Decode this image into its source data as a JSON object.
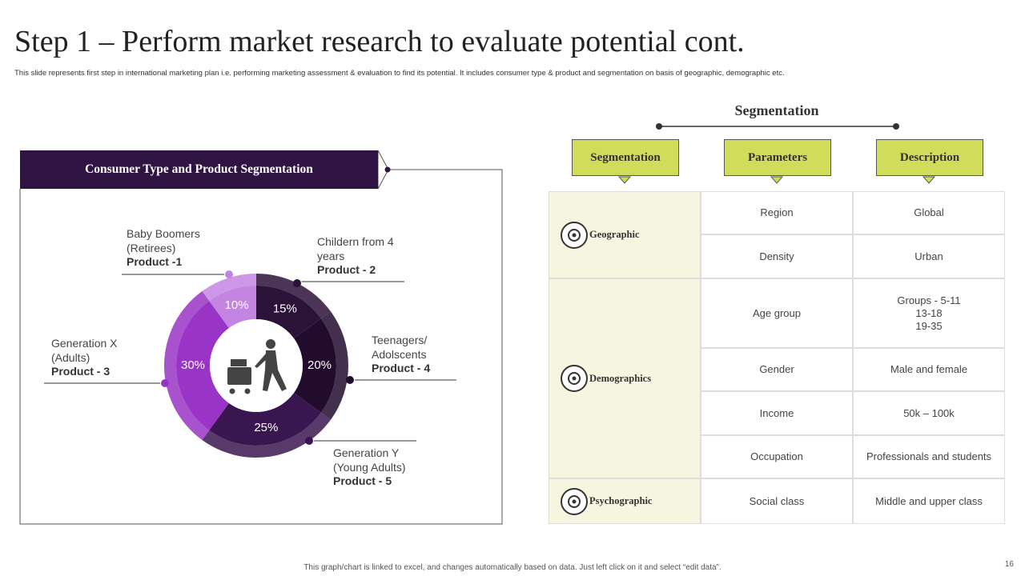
{
  "title": "Step 1 – Perform market research to evaluate potential cont.",
  "subtitle": "This slide represents first step in international marketing plan i.e. performing marketing assessment & evaluation to find its potential. It includes consumer type & product and segmentation on basis of geographic, demographic etc.",
  "chart_data": {
    "type": "donut",
    "title": "Consumer Type and Product Segmentation",
    "categories": [
      "Childern from 4\nyears",
      "Teenagers/\nAdolscents",
      "Generation Y\n(Young Adults)",
      "Generation X\n(Adults)",
      "Baby Boomers\n(Retirees)"
    ],
    "products": [
      "Product - 2",
      "Product - 4",
      "Product - 5",
      "Product - 3",
      "Product -1"
    ],
    "values": [
      15,
      20,
      25,
      30,
      10
    ],
    "value_labels": [
      "15%",
      "20%",
      "25%",
      "30%",
      "10%"
    ],
    "colors": [
      "#2a1238",
      "#220c2e",
      "#3a1650",
      "#9934c6",
      "#c484e2"
    ]
  },
  "segmentation": {
    "heading": "Segmentation",
    "columns": [
      "Segmentation",
      "Parameters",
      "Description"
    ],
    "groups": [
      {
        "label": "Geographic",
        "rows": [
          [
            "Region",
            "Global"
          ],
          [
            "Density",
            "Urban"
          ]
        ]
      },
      {
        "label": "Demographics",
        "rows": [
          [
            "Age group",
            "Groups - 5-11\n13-18\n19-35"
          ],
          [
            "Gender",
            "Male and female"
          ],
          [
            "Income",
            "50k – 100k"
          ],
          [
            "Occupation",
            "Professionals and students"
          ]
        ]
      },
      {
        "label": "Psychographic",
        "rows": [
          [
            "Social class",
            "Middle and upper class"
          ]
        ]
      }
    ]
  },
  "footer": "This graph/chart is linked to excel, and changes automatically based on data. Just left click on it and select “edit data”.",
  "page_number": "16"
}
